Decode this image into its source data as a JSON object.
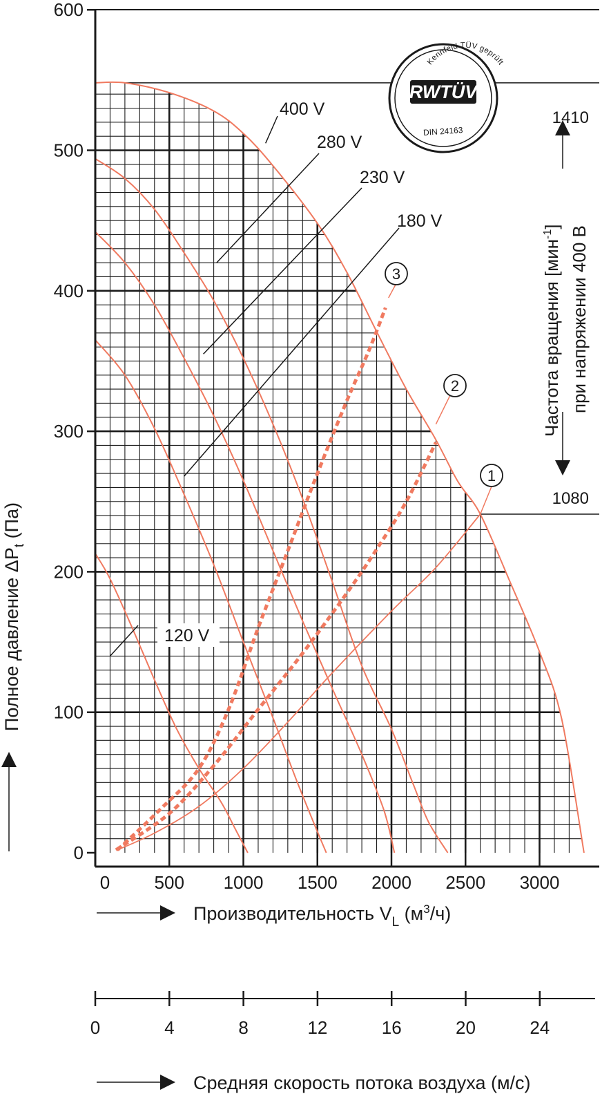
{
  "chart_data": {
    "type": "line",
    "title": "",
    "xlabel": {
      "prefix": "Производительность V",
      "sub": "L",
      "unit_open": " (м",
      "unit_sup": "3",
      "unit_close": "/ч)"
    },
    "x2label": "Средняя скорость потока воздуха (м/с)",
    "ylabel": {
      "prefix": "Полное давление ΔP",
      "sub": "t",
      "suffix": " (Па)"
    },
    "xlim": [
      0,
      3400
    ],
    "ylim": [
      0,
      600
    ],
    "x_ticks": [
      0,
      500,
      1000,
      1500,
      2000,
      2500,
      3000
    ],
    "y_ticks": [
      0,
      100,
      200,
      300,
      400,
      500,
      600
    ],
    "x2_ticks": [
      "0",
      "4",
      "8",
      "12",
      "16",
      "20",
      "24"
    ],
    "grid": {
      "major_x": 500,
      "minor_x": 100,
      "major_y": 100,
      "minor_y": 10,
      "region": "under 400 V curve"
    },
    "colors": {
      "curve": "#f07a60",
      "axis": "#1a1a1a",
      "grid": "#1a1a1a"
    },
    "speed_series": [
      {
        "name": "400 V",
        "points": [
          [
            0,
            548
          ],
          [
            200,
            548
          ],
          [
            500,
            541
          ],
          [
            800,
            528
          ],
          [
            1000,
            512
          ],
          [
            1200,
            489
          ],
          [
            1500,
            448
          ],
          [
            1700,
            413
          ],
          [
            1900,
            371
          ],
          [
            2100,
            330
          ],
          [
            2300,
            294
          ],
          [
            2450,
            264
          ],
          [
            2600,
            241
          ],
          [
            2800,
            193
          ],
          [
            3000,
            143
          ],
          [
            3150,
            95
          ],
          [
            3300,
            0
          ]
        ]
      },
      {
        "name": "280 V",
        "points": [
          [
            0,
            494
          ],
          [
            200,
            480
          ],
          [
            400,
            458
          ],
          [
            600,
            427
          ],
          [
            800,
            393
          ],
          [
            1000,
            352
          ],
          [
            1200,
            305
          ],
          [
            1400,
            252
          ],
          [
            1600,
            193
          ],
          [
            1800,
            133
          ],
          [
            2000,
            88
          ],
          [
            2150,
            48
          ],
          [
            2250,
            22
          ],
          [
            2380,
            0
          ]
        ]
      },
      {
        "name": "230 V",
        "points": [
          [
            0,
            442
          ],
          [
            200,
            420
          ],
          [
            400,
            390
          ],
          [
            600,
            352
          ],
          [
            800,
            311
          ],
          [
            1000,
            265
          ],
          [
            1200,
            215
          ],
          [
            1400,
            165
          ],
          [
            1600,
            117
          ],
          [
            1800,
            70
          ],
          [
            1950,
            30
          ],
          [
            2020,
            0
          ]
        ]
      },
      {
        "name": "180 V",
        "points": [
          [
            0,
            365
          ],
          [
            200,
            340
          ],
          [
            400,
            302
          ],
          [
            600,
            255
          ],
          [
            800,
            205
          ],
          [
            1000,
            150
          ],
          [
            1200,
            96
          ],
          [
            1350,
            54
          ],
          [
            1480,
            20
          ],
          [
            1560,
            0
          ]
        ]
      },
      {
        "name": "120 V",
        "points": [
          [
            0,
            213
          ],
          [
            100,
            195
          ],
          [
            250,
            160
          ],
          [
            400,
            123
          ],
          [
            550,
            88
          ],
          [
            700,
            60
          ],
          [
            850,
            36
          ],
          [
            950,
            16
          ],
          [
            1030,
            0
          ]
        ]
      }
    ],
    "speed_labels": [
      "400 V",
      "280 V",
      "230 V",
      "180 V",
      "120 V"
    ],
    "system_curves": [
      {
        "marker": "1",
        "points": [
          [
            150,
            2
          ],
          [
            400,
            14
          ],
          [
            700,
            33
          ],
          [
            1000,
            60
          ],
          [
            1300,
            93
          ],
          [
            1600,
            128
          ],
          [
            2000,
            172
          ],
          [
            2300,
            203
          ],
          [
            2600,
            241
          ]
        ],
        "dashed": false
      },
      {
        "marker": "2",
        "points": [
          [
            140,
            2
          ],
          [
            500,
            28
          ],
          [
            800,
            62
          ],
          [
            1100,
            102
          ],
          [
            1400,
            142
          ],
          [
            1700,
            185
          ],
          [
            1900,
            216
          ],
          [
            2100,
            250
          ],
          [
            2300,
            292
          ]
        ],
        "dashed": true
      },
      {
        "marker": "3",
        "points": [
          [
            150,
            2
          ],
          [
            450,
            32
          ],
          [
            700,
            60
          ],
          [
            900,
            102
          ],
          [
            1100,
            160
          ],
          [
            1300,
            215
          ],
          [
            1500,
            270
          ],
          [
            1700,
            322
          ],
          [
            1850,
            358
          ],
          [
            1960,
            388
          ]
        ],
        "dashed": true
      }
    ],
    "system_markers": [
      "1",
      "2",
      "3"
    ],
    "rpm_axis": {
      "label_line1": {
        "prefix": "Частота вращения [мин",
        "sup": "-1",
        "suffix": "]"
      },
      "label_line2": "при напряжении 400 В",
      "top_value": "1410",
      "bottom_value": "1080",
      "top_pressure": 548,
      "bottom_pressure": 241
    },
    "badge": {
      "arc_text": "Kennfeld TÜV geprüft",
      "logo_text": "RWTÜV",
      "bottom_text": "DIN 24163"
    }
  }
}
